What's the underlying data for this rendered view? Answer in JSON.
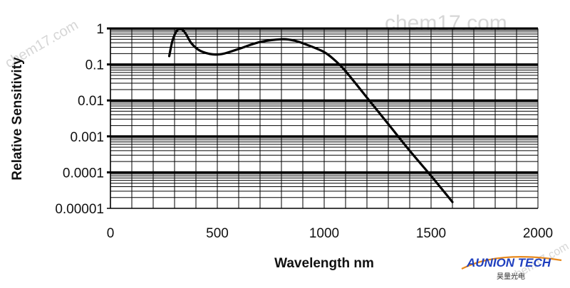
{
  "chart_data": {
    "type": "line",
    "title": "",
    "xlabel": "Wavelength nm",
    "ylabel": "Relative Sensitivity",
    "xlim": [
      0,
      2000
    ],
    "ylim": [
      1e-05,
      1
    ],
    "yscale": "log",
    "grid": true,
    "x_ticks": [
      0,
      500,
      1000,
      1500,
      2000
    ],
    "x_tick_labels": [
      "0",
      "500",
      "1000",
      "1500",
      "2000"
    ],
    "y_ticks": [
      1,
      0.1,
      0.01,
      0.001,
      0.0001,
      1e-05
    ],
    "y_tick_labels": [
      "1",
      "0.1",
      "0.01",
      "0.001",
      "0.0001",
      "0.00001"
    ],
    "series": [
      {
        "color": "#000000",
        "x": [
          275,
          290,
          310,
          330,
          350,
          380,
          420,
          480,
          530,
          600,
          700,
          800,
          860,
          920,
          1000,
          1050,
          1100,
          1200,
          1300,
          1400,
          1500,
          1600
        ],
        "y": [
          0.17,
          0.45,
          0.85,
          0.95,
          0.75,
          0.38,
          0.24,
          0.19,
          0.2,
          0.27,
          0.42,
          0.5,
          0.46,
          0.35,
          0.22,
          0.13,
          0.065,
          0.012,
          0.0022,
          0.0004,
          8e-05,
          1.5e-05
        ]
      }
    ]
  },
  "watermarks": {
    "top": "chem17.com",
    "left": "chem17.com",
    "bottom": "chem17.com"
  },
  "logo": {
    "name": "AUNION TECH",
    "subtitle": "昊量光电"
  }
}
